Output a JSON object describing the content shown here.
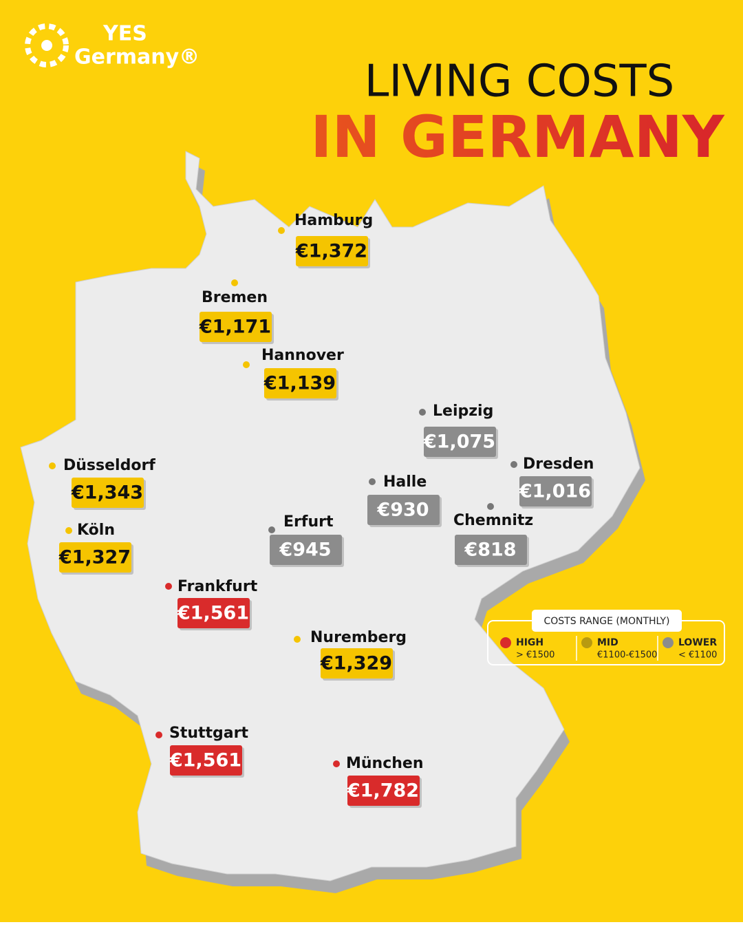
{
  "header": {
    "brand_top": "YES",
    "brand_bottom": "Germany®",
    "title_line1": "LIVING COSTS",
    "title_line2": "IN GERMANY"
  },
  "cities": [
    {
      "name": "Hamburg",
      "price": "€1,372",
      "color": "#f5c400"
    },
    {
      "name": "Bremen",
      "price": "€1,171",
      "color": "#f5c400"
    },
    {
      "name": "Hannover",
      "price": "€1,139",
      "color": "#f5c400"
    },
    {
      "name": "Leipzig",
      "price": "€1,075",
      "color": "#8c8c8c"
    },
    {
      "name": "Düsseldorf",
      "price": "€1,343",
      "color": "#f5c400"
    },
    {
      "name": "Dresden",
      "price": "€1,016",
      "color": "#8c8c8c"
    },
    {
      "name": "Halle",
      "price": "€930",
      "color": "#8c8c8c"
    },
    {
      "name": "Köln",
      "price": "€1,327",
      "color": "#f5c400"
    },
    {
      "name": "Erfurt",
      "price": "€945",
      "color": "#8c8c8c"
    },
    {
      "name": "Chemnitz",
      "price": "€818",
      "color": "#8c8c8c"
    },
    {
      "name": "Frankfurt",
      "price": "€1,561",
      "color": "#d92b2b"
    },
    {
      "name": "Nuremberg",
      "price": "€1,329",
      "color": "#f5c400"
    },
    {
      "name": "Stuttgart",
      "price": "€1,561",
      "color": "#d92b2b"
    },
    {
      "name": "München",
      "price": "€1,782",
      "color": "#d92b2b"
    }
  ],
  "legend": {
    "title": "COSTS RANGE (MONTHLY)",
    "items": [
      {
        "label": "HIGH",
        "range": "> €1500",
        "color": "#d92b2b"
      },
      {
        "label": "MID",
        "range": "€1100-€1500",
        "color": "#b89a10"
      },
      {
        "label": "LOWER",
        "range": "< €1100",
        "color": "#8c8c8c"
      }
    ]
  }
}
